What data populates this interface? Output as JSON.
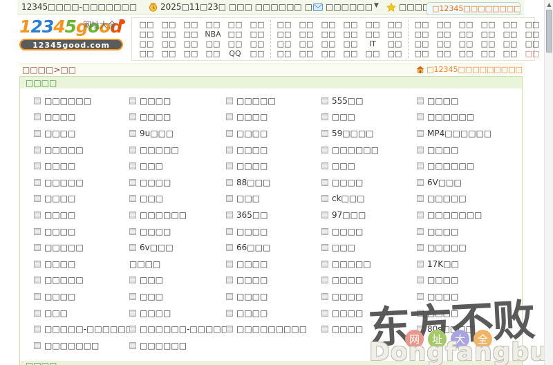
{
  "topbar": {
    "title": "12345□□□□-□□□□□□□",
    "date": "2025□11□23□ □□□ □□□□□□ □□",
    "mail_label": "□□□□□□",
    "favorites_label": "□□□□",
    "set_home_label": "□12345□□□□□□□□□"
  },
  "logo": {
    "letters": [
      {
        "ch": "1",
        "color": "#f7941d"
      },
      {
        "ch": "2",
        "color": "#2f7fd0"
      },
      {
        "ch": "3",
        "color": "#2f7fd0"
      },
      {
        "ch": "4",
        "color": "#f7941d"
      },
      {
        "ch": "5",
        "color": "#6cb52d"
      },
      {
        "ch": "g",
        "color": "#f7941d"
      },
      {
        "ch": "o",
        "color": "#6cb52d"
      },
      {
        "ch": "o",
        "color": "#f7941d"
      },
      {
        "ch": "d",
        "color": "#e8500a"
      }
    ],
    "subtitle": "网址大全",
    "domain_pill": "12345good.com"
  },
  "nav": {
    "link_color": "#444444",
    "highlight_color": "#cc6666",
    "highlight": {
      "group": 2,
      "col": 5,
      "row": 3
    },
    "groups": [
      {
        "columns": [
          [
            "□□",
            "□□",
            "□□",
            "□□"
          ],
          [
            "□□",
            "□□",
            "□□",
            "□□"
          ],
          [
            "□□",
            "□□",
            "□□",
            "□□"
          ],
          [
            "□□",
            "NBA",
            "□□",
            "□□"
          ],
          [
            "□□",
            "□□",
            "□□",
            "QQ"
          ],
          [
            "□□",
            "□□",
            "□□",
            "□□"
          ]
        ]
      },
      {
        "columns": [
          [
            "□□",
            "□□",
            "□□",
            "□□"
          ],
          [
            "□□",
            "□□",
            "□□",
            "□□"
          ],
          [
            "□□",
            "□□",
            "□□",
            "□□"
          ],
          [
            "□□",
            "□□",
            "□□",
            "□□"
          ],
          [
            "□□",
            "□□",
            "IT",
            "□□"
          ],
          [
            "□□",
            "□□",
            "□□",
            "□□"
          ]
        ]
      },
      {
        "columns": [
          [
            "□□",
            "□□",
            "□□",
            "□□"
          ],
          [
            "□□",
            "□□",
            "□□",
            "□□"
          ],
          [
            "□□",
            "□□",
            "□□",
            "□□"
          ],
          [
            "□□",
            "□□",
            "□□",
            "□□"
          ],
          [
            "□□",
            "□□",
            "□□",
            "□□"
          ],
          [
            "□□",
            "□□",
            "□□",
            "□□"
          ]
        ]
      }
    ]
  },
  "breadcrumb": {
    "path": "□□□□>□□",
    "set_home_label": "□12345□□□□□□□□□"
  },
  "section": {
    "title": "□□□□"
  },
  "links": {
    "rows": [
      [
        {
          "t": "□□□□□□"
        },
        {
          "t": "□□□□"
        },
        {
          "t": "□□□□□"
        },
        {
          "t": "555□□"
        },
        {
          "t": "□□□□"
        }
      ],
      [
        {
          "t": "□□□□"
        },
        {
          "t": "□□□□"
        },
        {
          "t": "□□□□"
        },
        {
          "t": "□□□"
        },
        {
          "t": "□□□□□□"
        }
      ],
      [
        {
          "t": "□□□□"
        },
        {
          "t": "9u□□□"
        },
        {
          "t": "□□□□"
        },
        {
          "t": "59□□□□"
        },
        {
          "t": "MP4□□□□□□"
        }
      ],
      [
        {
          "t": "□□□□□"
        },
        {
          "t": "□□□□□"
        },
        {
          "t": "□□□□"
        },
        {
          "t": "□□□□□□"
        },
        {
          "t": "□□□□"
        }
      ],
      [
        {
          "t": "□□□□"
        },
        {
          "t": "□□□"
        },
        {
          "t": "□□□□"
        },
        {
          "t": "□□□"
        },
        {
          "t": "□□□□□□"
        }
      ],
      [
        {
          "t": "□□□□□"
        },
        {
          "t": "□□□□"
        },
        {
          "t": "88□□□"
        },
        {
          "t": "□□□□"
        },
        {
          "t": "6V□□□"
        }
      ],
      [
        {
          "t": "□□□□"
        },
        {
          "t": "□□□"
        },
        {
          "t": "□□□"
        },
        {
          "t": "ck□□□"
        },
        {
          "t": "□□□□□"
        }
      ],
      [
        {
          "t": "□□□□"
        },
        {
          "t": "□□□□□□"
        },
        {
          "t": "365□□"
        },
        {
          "t": "97□□□"
        },
        {
          "t": "□□□□□□□"
        }
      ],
      [
        {
          "t": "□□□□"
        },
        {
          "t": "□□□□"
        },
        {
          "t": "□□□□"
        },
        {
          "t": "□□□□"
        },
        {
          "t": "□□□□"
        }
      ],
      [
        {
          "t": "□□□□□"
        },
        {
          "t": "6v□□□"
        },
        {
          "t": "66□□□"
        },
        {
          "t": "□□□"
        },
        {
          "t": "□□□□□"
        }
      ],
      [
        {
          "t": "□□□□"
        },
        {
          "t": "□□□□",
          "icon": false
        },
        {
          "t": "□□□□"
        },
        {
          "t": "□□□□□"
        },
        {
          "t": "17K□□"
        }
      ],
      [
        {
          "t": "□□□□□"
        },
        {
          "t": "□□□"
        },
        {
          "t": "□□□□"
        },
        {
          "t": "□□□□"
        },
        {
          "t": "□□□□"
        }
      ],
      [
        {
          "t": "□□□□"
        },
        {
          "t": "□□□"
        },
        {
          "t": "□□□□"
        },
        {
          "t": "□□□□"
        },
        {
          "t": "□□□□"
        }
      ],
      [
        {
          "t": "□□□"
        },
        {
          "t": "□□□□"
        },
        {
          "t": "□□□□"
        },
        {
          "t": "□□□□"
        },
        {
          "t": "□□□□"
        }
      ],
      [
        {
          "t": "□□□□□-□□□□□□"
        },
        {
          "t": "□□□□□□-□□□□□□"
        },
        {
          "t": "□□□□□□□□□"
        },
        {
          "t": "□□□□"
        },
        {
          "t": "80s□□□□"
        }
      ],
      [
        {
          "t": "□□□□□□□"
        },
        {
          "t": "□□□□□□"
        },
        null,
        null,
        null
      ]
    ]
  },
  "bottom_section": {
    "title": "□□□□"
  },
  "watermark": {
    "calligraphy": "东方不败",
    "circles": [
      {
        "ch": "网",
        "color": "#e8988a"
      },
      {
        "ch": "址",
        "color": "#a5c96a"
      },
      {
        "ch": "大",
        "color": "#a9a5e0"
      },
      {
        "ch": "全",
        "color": "#f0b468"
      }
    ],
    "domain": "Dongfangbubai.com"
  },
  "colors": {
    "topbar_bg": "#f4f8eb",
    "section_bg": "#e9f4da",
    "section_text": "#3a9a3a",
    "breadcrumb_text": "#9a4040",
    "accent_orange": "#f26c14",
    "content_border": "#cfe0ae"
  }
}
